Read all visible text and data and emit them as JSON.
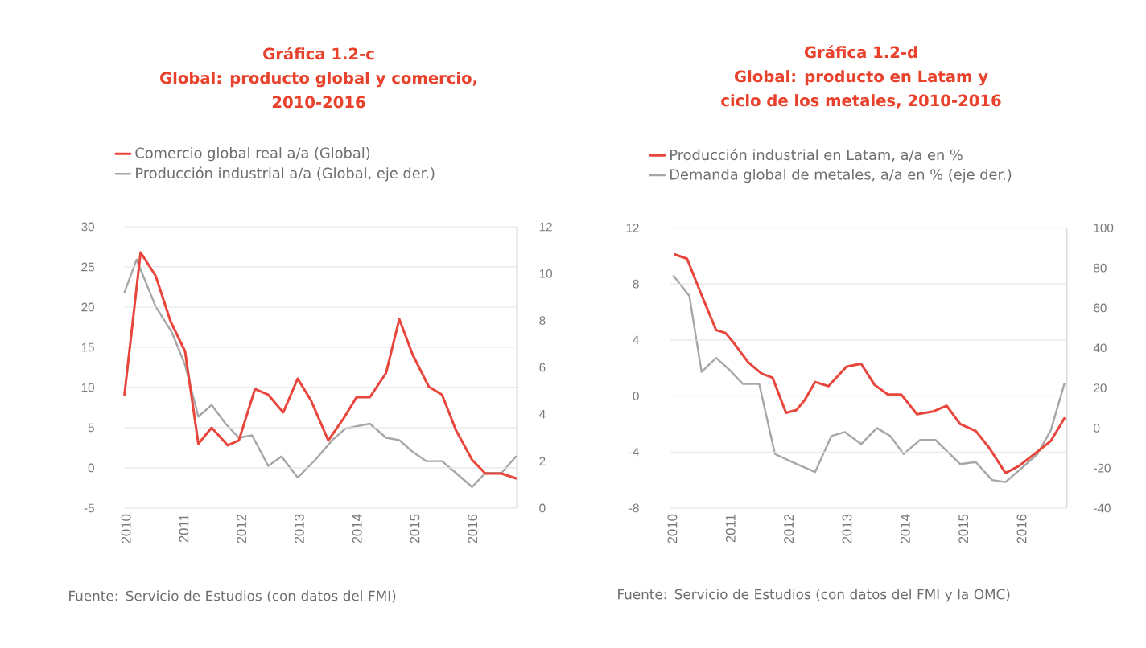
{
  "chart_data": [
    {
      "type": "line",
      "title": "Gráfica 1.2-c",
      "subtitle": "Global: producto global y comercio, 2010-2016",
      "series": [
        {
          "name": "Comercio global real a/a (Global)",
          "color": "#e8453c",
          "x": [
            2010.0,
            2010.28,
            2010.54,
            2010.8,
            2011.05,
            2011.28,
            2011.51,
            2011.79,
            2011.98,
            2012.26,
            2012.49,
            2012.75,
            2013.0,
            2013.23,
            2013.53,
            2013.79,
            2014.02,
            2014.25,
            2014.53,
            2014.76,
            2014.99,
            2015.27,
            2015.5,
            2015.74,
            2016.02,
            2016.25,
            2016.53,
            2016.78
          ],
          "values": [
            9.1,
            26.8,
            23.9,
            18.2,
            14.5,
            3.0,
            5.0,
            2.8,
            3.4,
            9.8,
            9.1,
            6.9,
            11.1,
            8.4,
            3.4,
            6.1,
            8.8,
            8.8,
            11.8,
            18.5,
            14.1,
            10.1,
            9.1,
            4.7,
            1.0,
            -0.7,
            -0.7,
            -1.3
          ]
        },
        {
          "name": "Producción industrial a/a (Global, eje der.)",
          "color": "#a6a6a6",
          "axis": "y2",
          "x": [
            2010.0,
            2010.21,
            2010.54,
            2010.82,
            2011.05,
            2011.28,
            2011.51,
            2011.75,
            2011.98,
            2012.21,
            2012.49,
            2012.72,
            2013.0,
            2013.32,
            2013.6,
            2013.83,
            2014.25,
            2014.53,
            2014.76,
            2014.99,
            2015.23,
            2015.5,
            2015.74,
            2016.02,
            2016.25,
            2016.53,
            2016.78
          ],
          "values": [
            9.2,
            10.6,
            8.6,
            7.5,
            6.1,
            3.9,
            4.4,
            3.6,
            3.0,
            3.1,
            1.8,
            2.2,
            1.3,
            2.1,
            2.9,
            3.4,
            3.6,
            3.0,
            2.9,
            2.4,
            2.0,
            2.0,
            1.5,
            0.9,
            1.5,
            1.5,
            2.2
          ]
        }
      ],
      "xlim": [
        2010,
        2016.8
      ],
      "xticks": [
        2010,
        2011,
        2012,
        2013,
        2014,
        2015,
        2016
      ],
      "ylim": [
        -5,
        30
      ],
      "yticks": [
        -5,
        0,
        5,
        10,
        15,
        20,
        25,
        30
      ],
      "y2lim": [
        0,
        12
      ],
      "y2ticks": [
        0,
        2,
        4,
        6,
        8,
        10,
        12
      ],
      "grid": "y",
      "legend": "top left",
      "line_style": "solid",
      "annotations": [
        "Fuente: Servicio de Estudios (con datos del FMI)"
      ]
    },
    {
      "type": "line",
      "title": "Gráfica 1.2-d",
      "subtitle": "Global: producto en Latam y ciclo de los metales, 2010-2016",
      "series": [
        {
          "name": "Producción industrial en Latam, a/a en %",
          "color": "#e8453c",
          "x": [
            2010.07,
            2010.28,
            2010.53,
            2010.78,
            2010.94,
            2011.1,
            2011.33,
            2011.56,
            2011.75,
            2011.98,
            2012.16,
            2012.3,
            2012.48,
            2012.71,
            2013.02,
            2013.27,
            2013.5,
            2013.73,
            2013.96,
            2014.23,
            2014.51,
            2014.74,
            2014.97,
            2015.24,
            2015.47,
            2015.75,
            2015.98,
            2016.26,
            2016.53,
            2016.76
          ],
          "values": [
            10.1,
            9.8,
            7.2,
            4.7,
            4.5,
            3.7,
            2.4,
            1.6,
            1.3,
            -1.2,
            -1.0,
            -0.3,
            1.0,
            0.7,
            2.1,
            2.3,
            0.8,
            0.1,
            0.1,
            -1.3,
            -1.1,
            -0.7,
            -2.0,
            -2.5,
            -3.7,
            -5.5,
            -5.0,
            -4.1,
            -3.2,
            -1.6
          ]
        },
        {
          "name": "Demanda global de metales, a/a en % (eje der.)",
          "color": "#a6a6a6",
          "axis": "y2",
          "x": [
            2010.05,
            2010.32,
            2010.53,
            2010.78,
            2011.01,
            2011.24,
            2011.52,
            2011.79,
            2012.16,
            2012.48,
            2012.76,
            2012.99,
            2013.27,
            2013.54,
            2013.77,
            2014.0,
            2014.28,
            2014.55,
            2014.97,
            2015.24,
            2015.52,
            2015.75,
            2016.03,
            2016.3,
            2016.53,
            2016.76
          ],
          "values": [
            76,
            66,
            28,
            35,
            29,
            22,
            22,
            -13,
            -18,
            -22,
            -4,
            -2,
            -8,
            0,
            -4,
            -13,
            -6,
            -6,
            -18,
            -17,
            -26,
            -27,
            -20,
            -13,
            -1,
            22
          ]
        }
      ],
      "xlim": [
        2010,
        2016.8
      ],
      "xticks": [
        2010,
        2011,
        2012,
        2013,
        2014,
        2015,
        2016
      ],
      "ylim": [
        -8,
        12
      ],
      "yticks": [
        -8,
        -4,
        0,
        4,
        8,
        12
      ],
      "y2lim": [
        -40,
        100
      ],
      "y2ticks": [
        -40,
        -20,
        0,
        20,
        40,
        60,
        80,
        100
      ],
      "grid": "y",
      "legend": "top left",
      "line_style": "solid",
      "annotations": [
        "Fuente: Servicio de Estudios (con datos del FMI y la OMC)"
      ]
    }
  ]
}
